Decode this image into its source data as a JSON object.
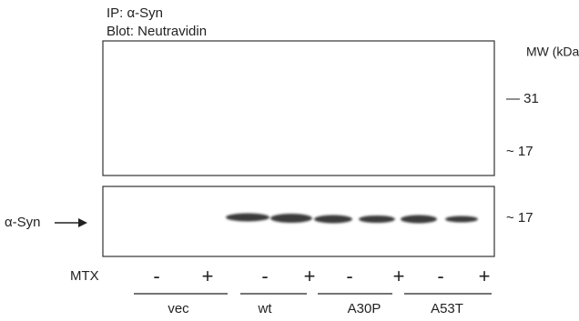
{
  "header": {
    "ip": "IP: α-Syn",
    "blot": "Blot: Neutravidin"
  },
  "mw": {
    "title": "MW (kDa)",
    "top_panel": [
      "— 31",
      "~ 17"
    ],
    "bottom_panel": "~ 17"
  },
  "band_label": "α-Syn",
  "treatment": {
    "label": "MTX",
    "signs": [
      "-",
      "+",
      "-",
      "+",
      "-",
      "+",
      "-",
      "+"
    ]
  },
  "groups": [
    "vec",
    "wt",
    "A30P",
    "A53T"
  ]
}
